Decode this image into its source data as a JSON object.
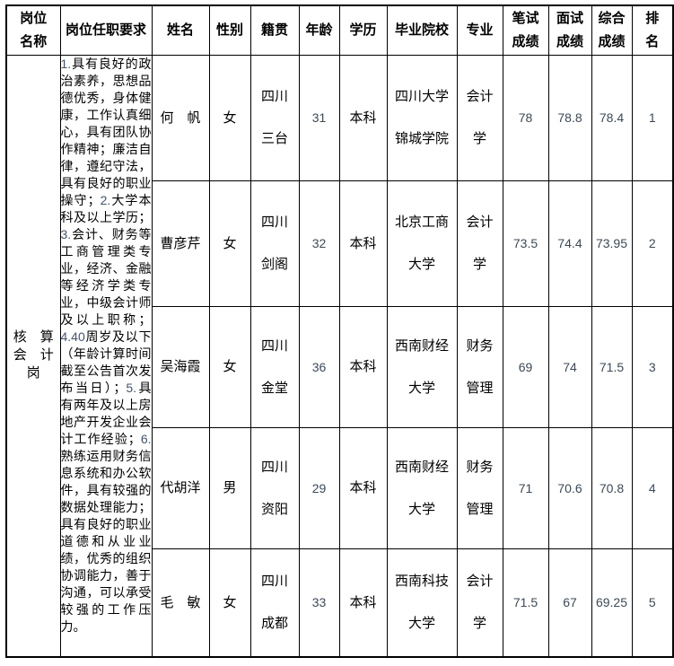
{
  "table": {
    "headers": {
      "position": "岗位\n名称",
      "requirements": "岗位任职要求",
      "name": "姓名",
      "gender": "性别",
      "origin": "籍贯",
      "age": "年龄",
      "education": "学历",
      "school": "毕业院校",
      "major": "专业",
      "written": "笔试\n成绩",
      "interview": "面试\n成绩",
      "overall": "综合\n成绩",
      "rank": "排\n名"
    },
    "position_name": "核　算\n会　计\n岗",
    "requirements_segments": [
      {
        "kind": "num",
        "text": "1."
      },
      {
        "kind": "txt",
        "text": "具有良好的政治素养，思想品德优秀，身体健康，工作认真细心，具有团队协作精神；廉洁自律，遵纪守法，具有良好的职业操守；"
      },
      {
        "kind": "num",
        "text": "2."
      },
      {
        "kind": "txt",
        "text": "大学本科及以上学历；"
      },
      {
        "kind": "num",
        "text": "3."
      },
      {
        "kind": "txt",
        "text": "会计、财务等工商管理类专业，经济、金融等经济学类专业，中级会计师及以上职称；"
      },
      {
        "kind": "num",
        "text": "4.40"
      },
      {
        "kind": "txt",
        "text": "周岁及以下（年龄计算时间截至公告首次发布当日）；"
      },
      {
        "kind": "num",
        "text": "5."
      },
      {
        "kind": "txt",
        "text": "具有两年及以上房地产开发企业会计工作经验；"
      },
      {
        "kind": "num",
        "text": "6."
      },
      {
        "kind": "txt",
        "text": "熟练运用财务信息系统和办公软件，具有较强的数据处理能力；具有良好的职业道德和从业业绩，优秀的组织协调能力，善于沟通，可以承受较强的工作压力。"
      }
    ],
    "rows": [
      {
        "name": "何　帆",
        "gender": "女",
        "origin": "四川\n三台",
        "age": "31",
        "education": "本科",
        "school": "四川大学\n锦城学院",
        "major": "会计\n学",
        "written": "78",
        "interview": "78.8",
        "overall": "78.4",
        "rank": "1"
      },
      {
        "name": "曹彦芹",
        "gender": "女",
        "origin": "四川\n剑阁",
        "age": "32",
        "education": "本科",
        "school": "北京工商\n大学",
        "major": "会计\n学",
        "written": "73.5",
        "interview": "74.4",
        "overall": "73.95",
        "rank": "2"
      },
      {
        "name": "吴海霞",
        "gender": "女",
        "origin": "四川\n金堂",
        "age": "36",
        "education": "本科",
        "school": "西南财经\n大学",
        "major": "财务\n管理",
        "written": "69",
        "interview": "74",
        "overall": "71.5",
        "rank": "3"
      },
      {
        "name": "代胡洋",
        "gender": "男",
        "origin": "四川\n资阳",
        "age": "29",
        "education": "本科",
        "school": "西南财经\n大学",
        "major": "财务\n管理",
        "written": "71",
        "interview": "70.6",
        "overall": "70.8",
        "rank": "4"
      },
      {
        "name": "毛　敏",
        "gender": "女",
        "origin": "四川\n成都",
        "age": "33",
        "education": "本科",
        "school": "西南科技\n大学",
        "major": "会计\n学",
        "written": "71.5",
        "interview": "67",
        "overall": "69.25",
        "rank": "5"
      }
    ],
    "colors": {
      "border": "#000000",
      "text": "#000000",
      "numeric_text": "#3d4956",
      "list_number_text": "#44546a"
    }
  }
}
